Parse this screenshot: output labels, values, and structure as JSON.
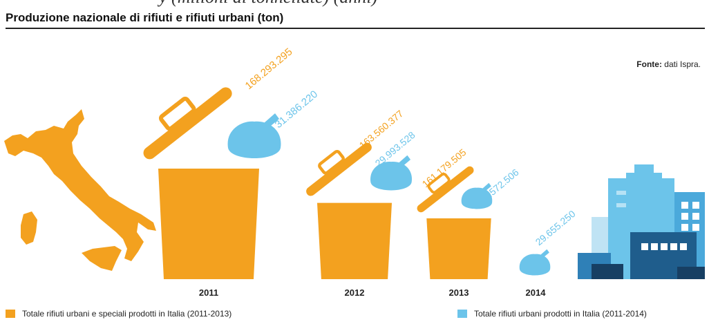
{
  "header": {
    "cut_text": "y (milioni di tonnellate) (anni)",
    "title": "Produzione nazionale di rifiuti e rifiuti urbani (ton)"
  },
  "source": {
    "label": "Fonte:",
    "text": "dati Ispra."
  },
  "colors": {
    "orange": "#F3A11F",
    "blue": "#6CC4EA"
  },
  "chart_data": {
    "type": "bar",
    "categories": [
      "2011",
      "2012",
      "2013",
      "2014"
    ],
    "series": [
      {
        "name": "Totale rifiuti urbani e speciali prodotti in Italia (2011-2013)",
        "values": [
          168293295,
          163560377,
          161179505,
          null
        ],
        "labels": [
          "168.293.295",
          "163.560.377",
          "161.179.505",
          ""
        ]
      },
      {
        "name": "Totale rifiuti urbani prodotti in Italia (2011-2014)",
        "values": [
          31386220,
          29993528,
          29572506,
          29655250
        ],
        "labels": [
          "31.386.220",
          "29.993.528",
          "29.572.506",
          "29.655.250"
        ]
      }
    ],
    "title": "Produzione nazionale di rifiuti e rifiuti urbani (ton)"
  },
  "legend": {
    "orange": "Totale rifiuti urbani e speciali prodotti in Italia (2011-2013)",
    "blue": "Totale rifiuti urbani prodotti in Italia (2011-2014)"
  }
}
